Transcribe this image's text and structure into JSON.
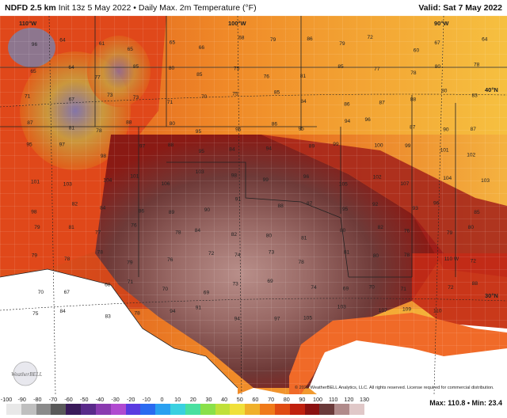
{
  "header": {
    "product": "NDFD 2.5 km",
    "init": "Init 13z 5 May 2022",
    "field": "Daily Max. 2m Temperature (°F)",
    "valid": "Valid: Sat 7 May 2022"
  },
  "graticule": {
    "lon_110": "110°W",
    "lon_100": "100°W",
    "lon_90": "90°W",
    "lat_40": "40°N",
    "lat_30": "30°N"
  },
  "stats": {
    "text": "Max: 110.8 • Min: 23.4"
  },
  "copyright": "© 2022 WeatherBELL Analytics, LLC. All rights reserved. License required for commercial distribution.",
  "logo": "WeatherBELL",
  "colorbar": {
    "ticks": [
      "-100",
      "-90",
      "-80",
      "-70",
      "-60",
      "-50",
      "-40",
      "-30",
      "-20",
      "-10",
      "0",
      "10",
      "20",
      "30",
      "40",
      "50",
      "60",
      "70",
      "80",
      "90",
      "100",
      "110",
      "120",
      "130"
    ],
    "colors": [
      "#e8e8e8",
      "#bfbfbf",
      "#8a8a8a",
      "#5a5a5a",
      "#3a1a5a",
      "#5a2a8a",
      "#8a3ab0",
      "#b04ad0",
      "#5a3ae0",
      "#2a6af0",
      "#2aa0f0",
      "#3ad0e0",
      "#4ae0a0",
      "#8ae04a",
      "#c0e03a",
      "#f0e03a",
      "#f0b02a",
      "#f07a1a",
      "#e04a12",
      "#c0200e",
      "#8a1010",
      "#6a3a3a",
      "#b08a8a",
      "#e0c8c8"
    ]
  },
  "station_values": [
    "96",
    "64",
    "61",
    "65",
    "65",
    "66",
    "68",
    "79",
    "86",
    "79",
    "72",
    "60",
    "67",
    "64",
    "65",
    "64",
    "77",
    "85",
    "80",
    "85",
    "75",
    "76",
    "81",
    "85",
    "77",
    "78",
    "80",
    "78",
    "71",
    "67",
    "73",
    "73",
    "71",
    "70",
    "75",
    "85",
    "84",
    "86",
    "87",
    "88",
    "80",
    "83",
    "87",
    "81",
    "78",
    "88",
    "80",
    "95",
    "96",
    "86",
    "95",
    "94",
    "96",
    "87",
    "90",
    "87",
    "95",
    "97",
    "98",
    "97",
    "88",
    "95",
    "84",
    "94",
    "89",
    "99",
    "100",
    "99",
    "101",
    "102",
    "101",
    "103",
    "104",
    "101",
    "106",
    "103",
    "98",
    "99",
    "96",
    "105",
    "102",
    "107",
    "104",
    "103",
    "98",
    "82",
    "84",
    "86",
    "89",
    "90",
    "91",
    "88",
    "87",
    "95",
    "92",
    "93",
    "96",
    "85",
    "79",
    "81",
    "77",
    "76",
    "78",
    "84",
    "82",
    "80",
    "81",
    "80",
    "82",
    "76",
    "79",
    "80",
    "79",
    "78",
    "78",
    "79",
    "76",
    "72",
    "74",
    "73",
    "78",
    "81",
    "80",
    "78",
    "110 W",
    "72",
    "70",
    "67",
    "68",
    "71",
    "70",
    "69",
    "73",
    "69",
    "74",
    "69",
    "70",
    "71",
    "72",
    "88",
    "75",
    "84",
    "83",
    "78",
    "94",
    "91",
    "94",
    "97",
    "105",
    "103",
    "107",
    "109",
    "110"
  ]
}
